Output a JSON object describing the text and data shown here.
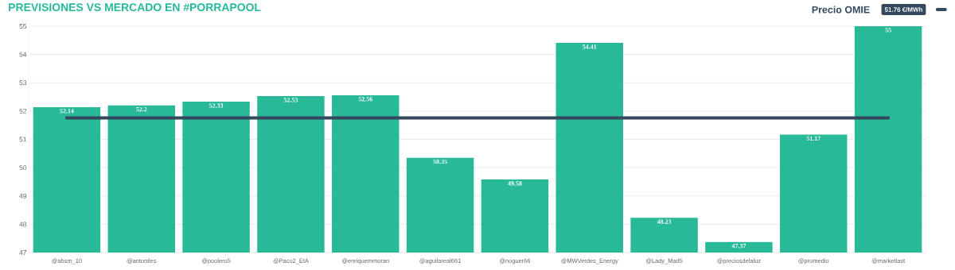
{
  "chart_data": {
    "type": "bar",
    "title": "PREVISIONES VS MERCADO EN #PORRAPOOL",
    "categories": [
      "@absm_10",
      "@antoniles",
      "@poolero5",
      "@Paco2_EIA",
      "@enriquemmoran",
      "@aguilareal661",
      "@noguer66",
      "@MWVerdes_Energy",
      "@Lady_Mad5",
      "@preciosdelaluz",
      "@promedio",
      "@marketlast"
    ],
    "series": [
      {
        "color": "#28b999",
        "values": [
          52.14,
          52.2,
          52.33,
          52.53,
          52.56,
          50.35,
          49.58,
          54.41,
          48.23,
          47.37,
          51.17,
          55
        ],
        "value_labels": [
          "52.14",
          "52.2",
          "52.33",
          "52.53",
          "52.56",
          "50.35",
          "49.58",
          "54.41",
          "48.23",
          "47.37",
          "51.17",
          "55"
        ]
      },
      {
        "type": "line",
        "name": "Precio OMIE",
        "color": "#34495e",
        "values": [
          51.76,
          51.76,
          51.76,
          51.76,
          51.76,
          51.76,
          51.76,
          51.76,
          51.76,
          51.76,
          51.76,
          51.76
        ]
      }
    ],
    "annotations": [
      "51.76 €/MWh"
    ],
    "ylim": [
      47,
      55
    ],
    "yticks": [
      47,
      48,
      49,
      50,
      51,
      52,
      53,
      54,
      55
    ],
    "grid": "y",
    "legend": "top right",
    "marker": "none"
  }
}
